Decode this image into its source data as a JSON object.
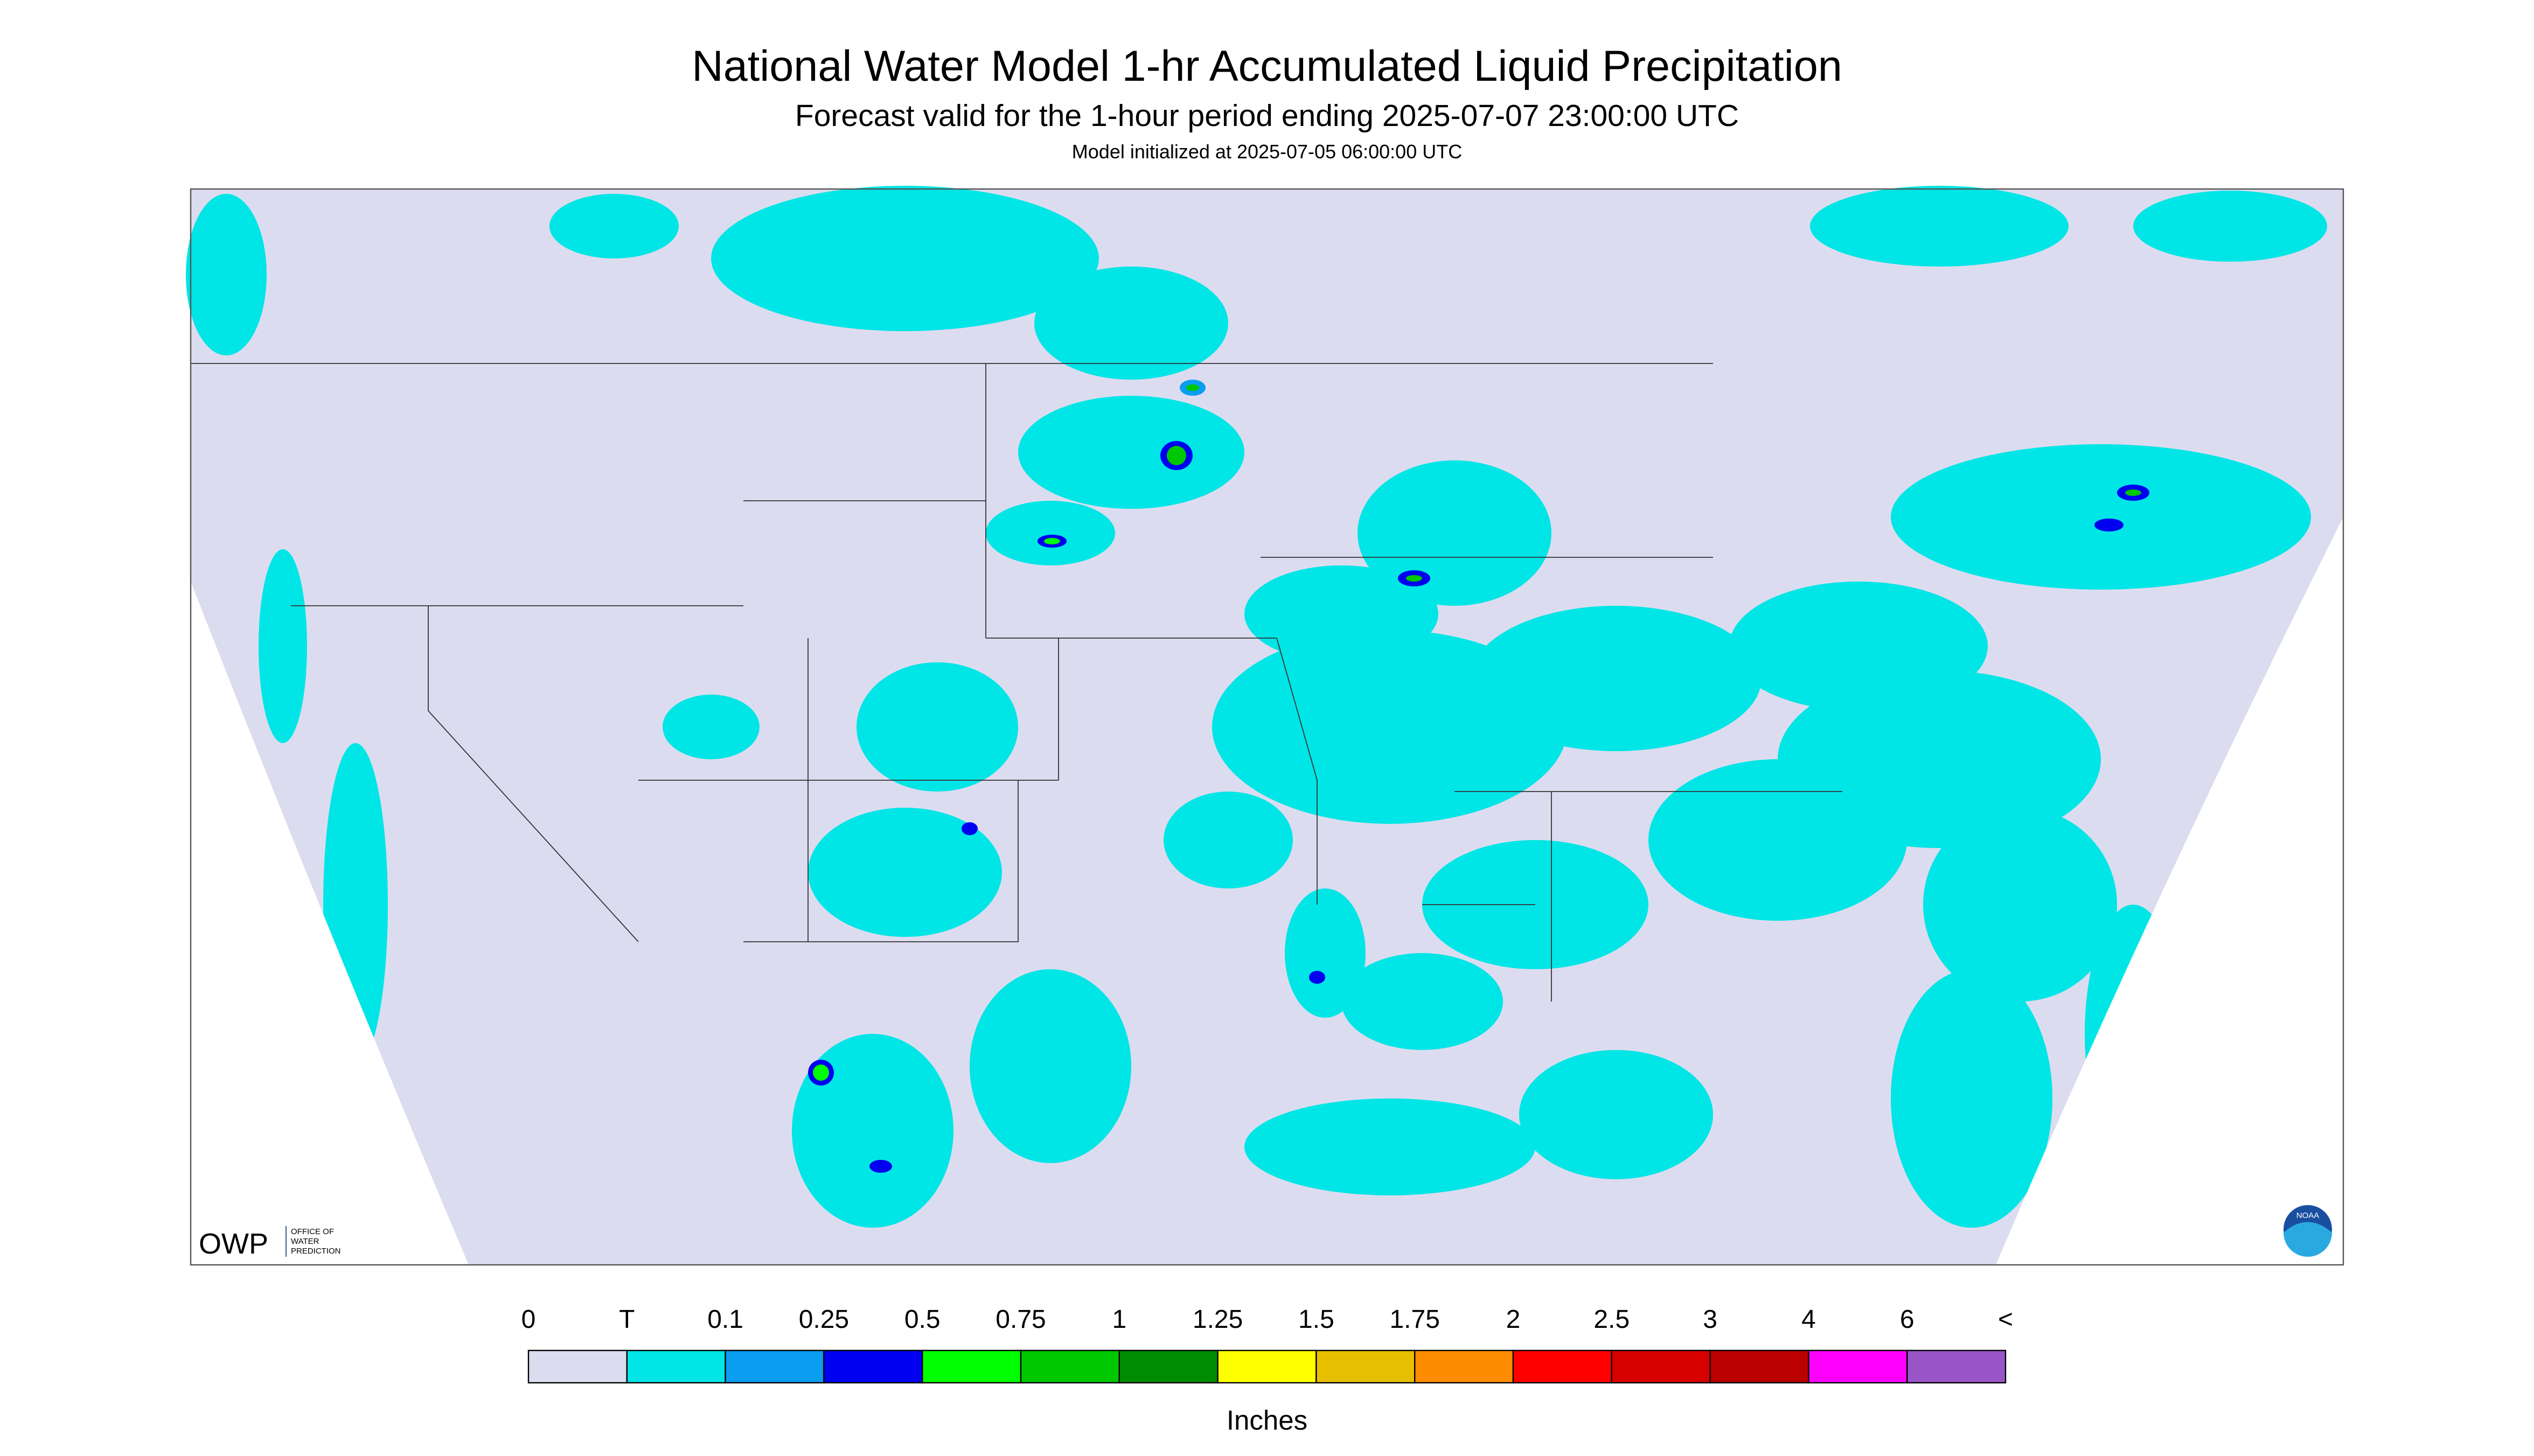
{
  "header": {
    "title": "National Water Model 1-hr Accumulated Liquid Precipitation",
    "subtitle": "Forecast valid for the 1-hour period ending 2025-07-07 23:00:00 UTC",
    "note": "Model initialized at 2025-07-05 06:00:00 UTC"
  },
  "map": {
    "logo": "OWP",
    "logo_text": [
      "OFFICE OF",
      "WATER",
      "PREDICTION"
    ],
    "badge": "NOAA"
  },
  "legend": {
    "labels": [
      "0",
      "T",
      "0.1",
      "0.25",
      "0.5",
      "0.75",
      "1",
      "1.25",
      "1.5",
      "1.75",
      "2",
      "2.5",
      "3",
      "4",
      "6",
      "<"
    ],
    "colors": [
      "#dcdcf0",
      "#00e5e5",
      "#0b9df0",
      "#0000f0",
      "#00ff00",
      "#00c800",
      "#008c00",
      "#ffff00",
      "#e6c000",
      "#ff8c00",
      "#ff0000",
      "#d70000",
      "#bb0000",
      "#ff00ff",
      "#9955c8"
    ],
    "unit": "Inches"
  }
}
